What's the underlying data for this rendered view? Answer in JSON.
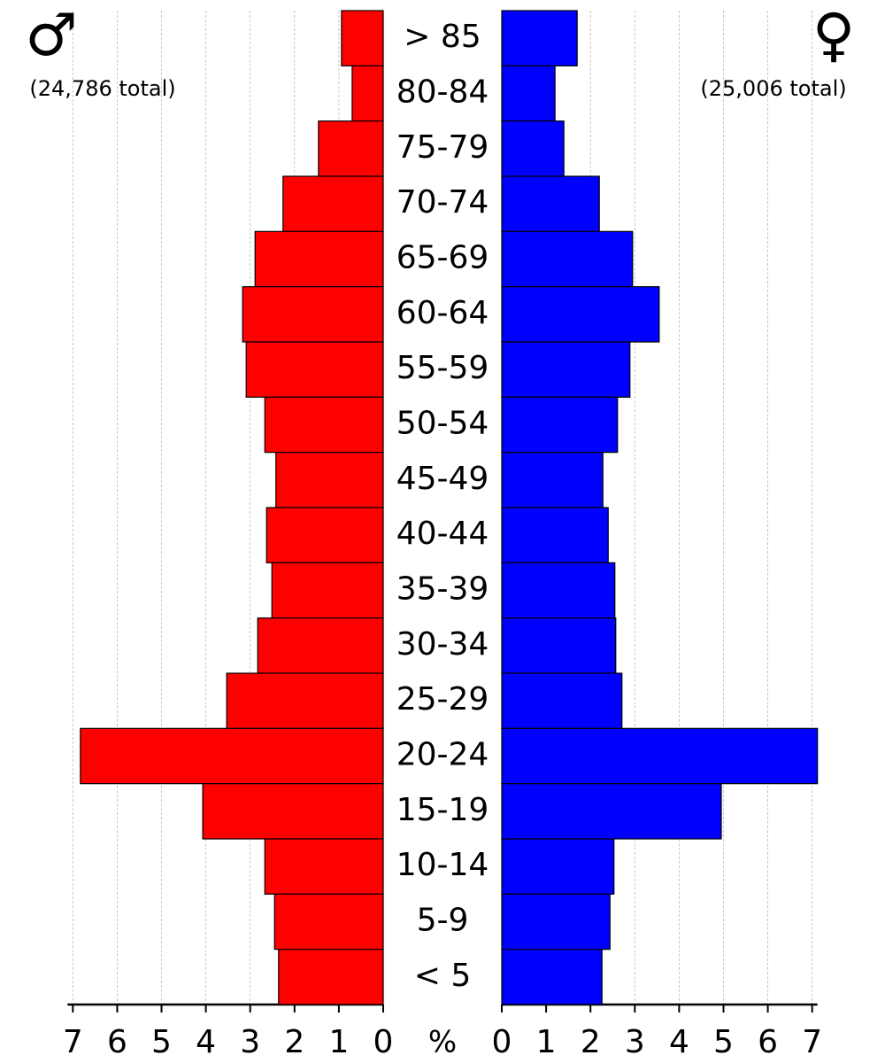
{
  "chart_data": {
    "type": "population-pyramid",
    "xlabel": "%",
    "categories": [
      "> 85",
      "80-84",
      "75-79",
      "70-74",
      "65-69",
      "60-64",
      "55-59",
      "50-54",
      "45-49",
      "40-44",
      "35-39",
      "30-34",
      "25-29",
      "20-24",
      "15-19",
      "10-14",
      "5-9",
      "< 5"
    ],
    "series": [
      {
        "name": "♂",
        "total_label": "(24,786 total)",
        "color": "#ff0000",
        "side": "left",
        "values": [
          0.94,
          0.7,
          1.46,
          2.26,
          2.89,
          3.17,
          3.09,
          2.67,
          2.42,
          2.63,
          2.51,
          2.83,
          3.53,
          6.83,
          4.07,
          2.67,
          2.45,
          2.36
        ]
      },
      {
        "name": "♀",
        "total_label": "(25,006 total)",
        "color": "#0000ff",
        "side": "right",
        "values": [
          1.7,
          1.2,
          1.4,
          2.2,
          2.95,
          3.55,
          2.89,
          2.61,
          2.28,
          2.4,
          2.55,
          2.57,
          2.71,
          7.12,
          4.95,
          2.53,
          2.44,
          2.26
        ]
      }
    ],
    "xlim": [
      0,
      7.12
    ],
    "xticks": [
      0,
      1,
      2,
      3,
      4,
      5,
      6,
      7
    ],
    "grid": true
  }
}
